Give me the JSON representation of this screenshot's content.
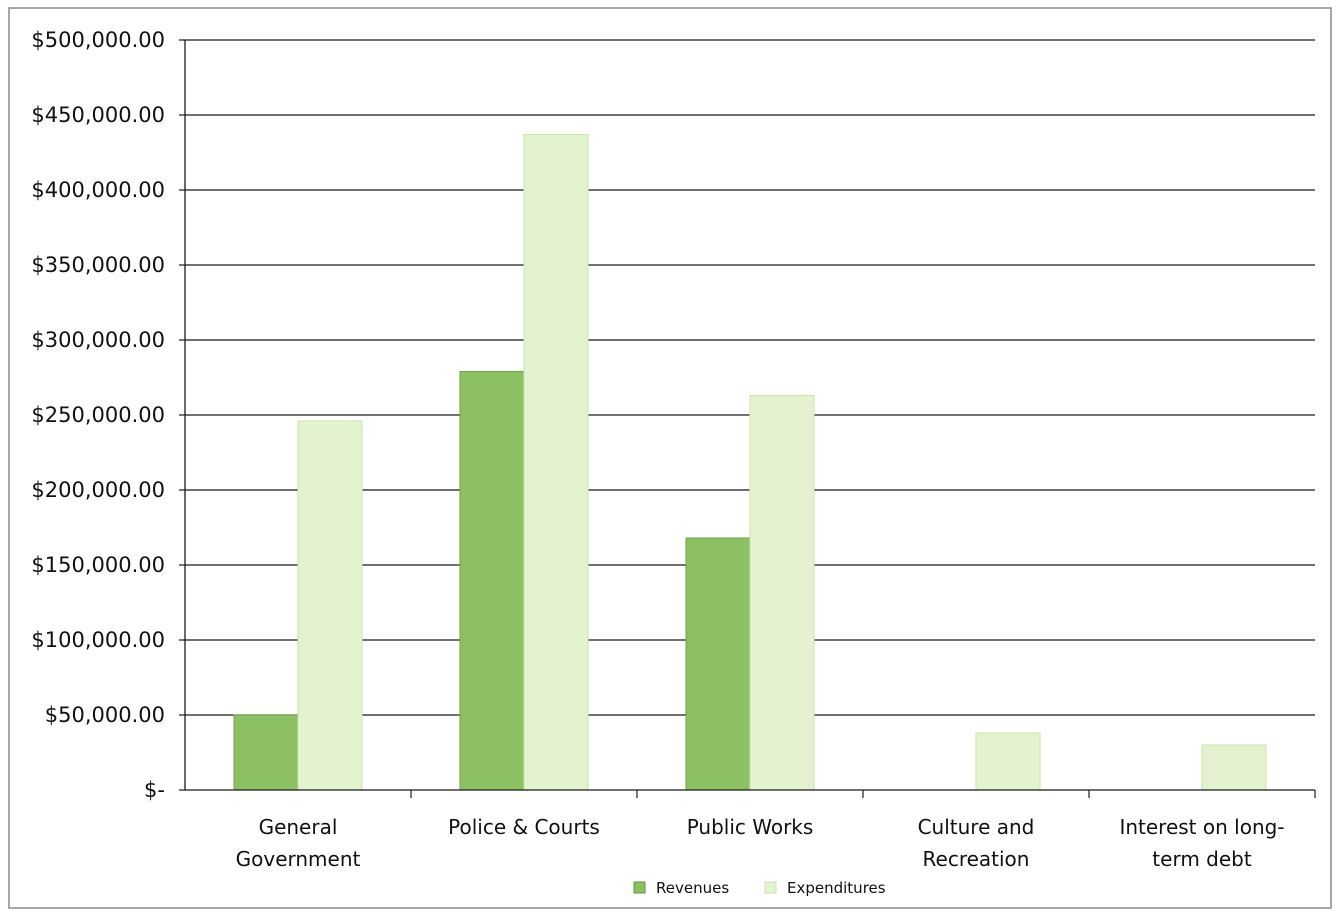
{
  "chart_data": {
    "type": "bar",
    "title": "",
    "xlabel": "",
    "ylabel": "",
    "ylim": [
      0,
      500000
    ],
    "y_ticks": [
      {
        "value": 500000,
        "label": "$500,000.00"
      },
      {
        "value": 450000,
        "label": "$450,000.00"
      },
      {
        "value": 400000,
        "label": "$400,000.00"
      },
      {
        "value": 350000,
        "label": "$350,000.00"
      },
      {
        "value": 300000,
        "label": "$300,000.00"
      },
      {
        "value": 250000,
        "label": "$250,000.00"
      },
      {
        "value": 200000,
        "label": "$200,000.00"
      },
      {
        "value": 150000,
        "label": "$150,000.00"
      },
      {
        "value": 100000,
        "label": "$100,000.00"
      },
      {
        "value": 50000,
        "label": "$50,000.00"
      },
      {
        "value": 0,
        "label": "$-"
      }
    ],
    "categories": [
      [
        "General",
        "Government"
      ],
      [
        "Police & Courts"
      ],
      [
        "Public Works"
      ],
      [
        "Culture and",
        "Recreation"
      ],
      [
        "Interest on long-",
        "term debt"
      ]
    ],
    "series": [
      {
        "name": "Revenues",
        "color": "#8cc063",
        "values": [
          50000,
          279000,
          168000,
          0,
          0
        ]
      },
      {
        "name": "Expenditures",
        "color": "#e3f3cf",
        "values": [
          246000,
          437000,
          263000,
          38000,
          30000
        ]
      }
    ],
    "grid": true,
    "legend": "bottom-center"
  }
}
